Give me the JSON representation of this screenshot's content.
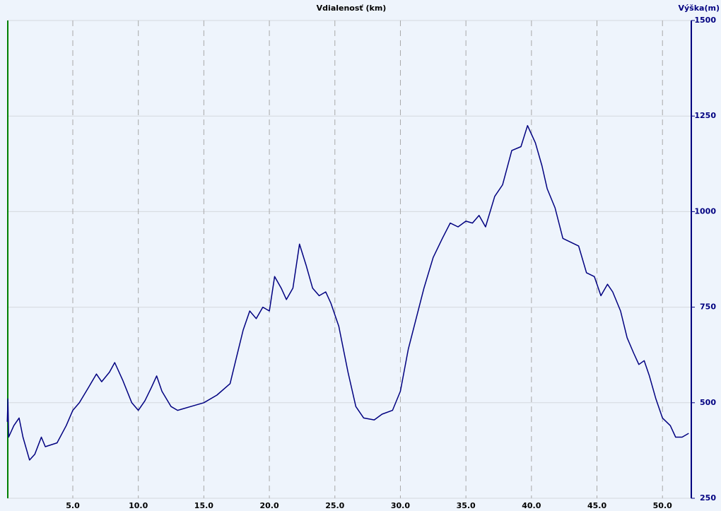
{
  "chart_data": {
    "type": "line",
    "title": "Vdialenosť (km)",
    "y_label": "Výška(m)",
    "x": [
      0,
      0.05,
      0.1,
      0.5,
      0.9,
      1.2,
      1.7,
      2.1,
      2.6,
      2.9,
      3.8,
      4.5,
      5.0,
      5.5,
      6.2,
      6.8,
      7.2,
      7.8,
      8.2,
      8.8,
      9.5,
      10.0,
      10.5,
      11.0,
      11.4,
      11.8,
      12.5,
      13.0,
      14.0,
      15.0,
      16.0,
      17.0,
      17.5,
      18.0,
      18.5,
      19.0,
      19.5,
      20.0,
      20.4,
      20.9,
      21.3,
      21.8,
      22.3,
      22.8,
      23.3,
      23.8,
      24.3,
      24.7,
      25.3,
      26.0,
      26.6,
      27.2,
      28.0,
      28.6,
      29.4,
      30.0,
      30.6,
      31.2,
      31.8,
      32.5,
      33.2,
      33.8,
      34.4,
      35.0,
      35.5,
      36.0,
      36.5,
      37.2,
      37.8,
      38.5,
      39.2,
      39.7,
      40.3,
      40.8,
      41.2,
      41.8,
      42.4,
      43.0,
      43.6,
      44.2,
      44.8,
      45.3,
      45.8,
      46.2,
      46.8,
      47.3,
      47.8,
      48.2,
      48.6,
      49.0,
      49.5,
      50.0,
      50.6,
      51.0,
      51.5,
      52.0
    ],
    "series": [
      {
        "name": "Výška",
        "color": "#000080",
        "axis": "y2",
        "values": [
          450,
          510,
          410,
          440,
          460,
          410,
          350,
          365,
          410,
          385,
          395,
          440,
          480,
          500,
          540,
          575,
          555,
          580,
          605,
          560,
          500,
          480,
          505,
          540,
          570,
          530,
          490,
          480,
          490,
          500,
          520,
          550,
          620,
          690,
          740,
          720,
          750,
          740,
          830,
          800,
          770,
          800,
          915,
          860,
          800,
          780,
          790,
          760,
          700,
          580,
          490,
          460,
          455,
          470,
          480,
          530,
          640,
          720,
          800,
          880,
          930,
          970,
          960,
          975,
          970,
          990,
          960,
          1040,
          1070,
          1160,
          1170,
          1225,
          1180,
          1120,
          1060,
          1010,
          930,
          920,
          910,
          840,
          830,
          780,
          810,
          790,
          740,
          670,
          630,
          600,
          610,
          570,
          510,
          460,
          440,
          410,
          410,
          420
        ]
      }
    ],
    "xlim": [
      0,
      52.2
    ],
    "xticks": [
      {
        "value": 5,
        "label": "5.0"
      },
      {
        "value": 10,
        "label": "10.0"
      },
      {
        "value": 15,
        "label": "15.0"
      },
      {
        "value": 20,
        "label": "20.0"
      },
      {
        "value": 25,
        "label": "25.0"
      },
      {
        "value": 30,
        "label": "30.0"
      },
      {
        "value": 35,
        "label": "35.0"
      },
      {
        "value": 40,
        "label": "40.0"
      },
      {
        "value": 45,
        "label": "45.0"
      },
      {
        "value": 50,
        "label": "50.0"
      }
    ],
    "y2lim": [
      250,
      1500
    ],
    "y2ticks": [
      250,
      500,
      750,
      1000,
      1250,
      1500
    ],
    "grid": true
  }
}
